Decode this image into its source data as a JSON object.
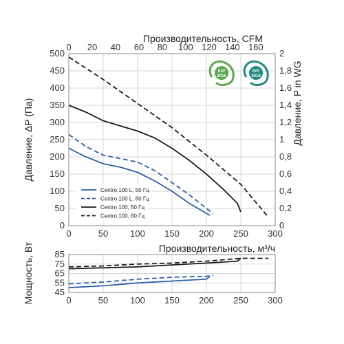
{
  "chart_data": [
    {
      "type": "line",
      "name": "pressure",
      "x_top": {
        "label": "Производительность, CFM",
        "ticks": [
          0,
          20,
          40,
          60,
          80,
          100,
          120,
          140,
          160
        ],
        "lim": [
          0,
          176.6
        ]
      },
      "x_bottom": {
        "ticks": [
          0,
          50,
          100,
          150,
          200,
          250,
          300
        ],
        "lim": [
          0,
          300
        ]
      },
      "y_left": {
        "label": "Давление, ΔP (Па)",
        "ticks": [
          0,
          50,
          100,
          150,
          200,
          250,
          300,
          350,
          400,
          450,
          500
        ],
        "lim": [
          0,
          500
        ]
      },
      "y_right": {
        "label": "Давление,  P in WG",
        "ticks": [
          "0",
          "0,2",
          "0,4",
          "0,6",
          "0,8",
          "1",
          "1,2",
          "1,4",
          "1,6",
          "1,8",
          "2"
        ],
        "lim": [
          0,
          2
        ]
      },
      "grid": true,
      "legend_position": "bottom-left",
      "series": [
        {
          "name": "Centro 100 L, 50 Гц",
          "color": "#2a5ea8",
          "dash": false,
          "x": [
            0,
            25,
            50,
            75,
            100,
            125,
            150,
            175,
            205
          ],
          "y": [
            225,
            200,
            180,
            170,
            155,
            130,
            100,
            65,
            30
          ]
        },
        {
          "name": "Centro 100 L, 60 Гц",
          "color": "#2a5ea8",
          "dash": true,
          "x": [
            0,
            25,
            50,
            75,
            100,
            125,
            150,
            175,
            200,
            210
          ],
          "y": [
            265,
            230,
            205,
            195,
            185,
            160,
            125,
            90,
            50,
            35
          ]
        },
        {
          "name": "Centro 100, 50 Гц",
          "color": "#1a1a1a",
          "dash": false,
          "x": [
            0,
            25,
            50,
            75,
            100,
            125,
            150,
            175,
            200,
            225,
            245,
            250
          ],
          "y": [
            350,
            330,
            305,
            290,
            275,
            255,
            225,
            190,
            150,
            105,
            65,
            40
          ]
        },
        {
          "name": "Centro 100, 60 Гц",
          "color": "#1a1a1a",
          "dash": true,
          "x": [
            0,
            50,
            100,
            150,
            200,
            250,
            290
          ],
          "y": [
            490,
            425,
            355,
            285,
            205,
            120,
            25
          ]
        }
      ]
    },
    {
      "type": "line",
      "name": "power",
      "x": {
        "label": "Производительность, м³/ч",
        "ticks": [
          0,
          50,
          100,
          150,
          200,
          250,
          300
        ],
        "lim": [
          0,
          300
        ]
      },
      "y": {
        "label": "Мощность, Вт",
        "ticks": [
          45,
          55,
          65,
          75,
          85
        ],
        "lim": [
          45,
          85
        ]
      },
      "grid": true,
      "series": [
        {
          "name": "Centro 100 L, 50 Гц",
          "color": "#2a5ea8",
          "dash": false,
          "x": [
            0,
            50,
            100,
            150,
            200,
            205
          ],
          "y": [
            50,
            52,
            55,
            57,
            59,
            62
          ]
        },
        {
          "name": "Centro 100 L, 60 Гц",
          "color": "#2a5ea8",
          "dash": true,
          "x": [
            0,
            50,
            100,
            150,
            200,
            210
          ],
          "y": [
            54,
            56,
            59,
            61,
            62,
            63
          ]
        },
        {
          "name": "Centro 100, 50 Гц",
          "color": "#1a1a1a",
          "dash": false,
          "x": [
            0,
            50,
            100,
            150,
            200,
            245,
            250
          ],
          "y": [
            70,
            71,
            72,
            74,
            76,
            78,
            81
          ]
        },
        {
          "name": "Centro 100, 60 Гц",
          "color": "#1a1a1a",
          "dash": true,
          "x": [
            0,
            50,
            100,
            150,
            200,
            250,
            290
          ],
          "y": [
            72,
            73,
            75,
            76,
            78,
            81,
            81
          ]
        }
      ]
    }
  ],
  "badges": [
    {
      "label_top": "ErP",
      "label_bottom": "2016",
      "color": "#5aa84a",
      "icon": "erp-2016-leaf-icon"
    },
    {
      "label_top": "ErP",
      "label_bottom": "2018",
      "color": "#1f8a7d",
      "icon": "erp-2018-leaf-icon"
    }
  ]
}
